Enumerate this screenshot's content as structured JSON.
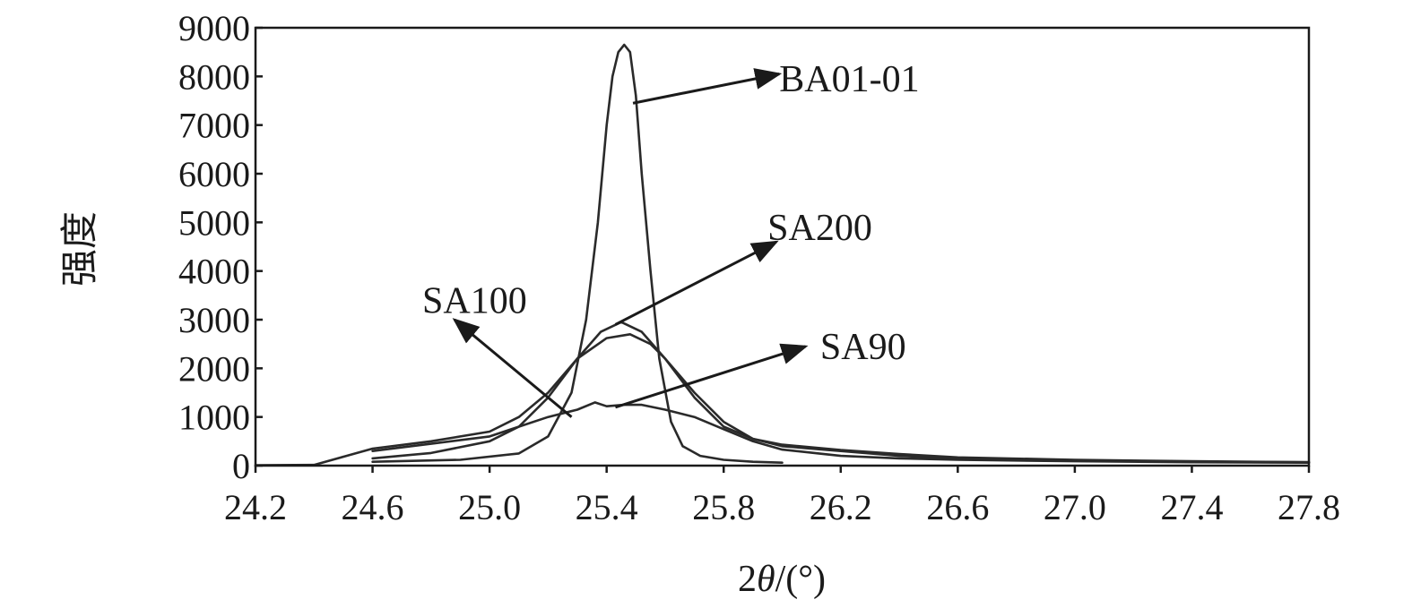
{
  "chart_data": {
    "type": "line",
    "xlabel_prefix": "2",
    "xlabel_theta": "θ",
    "xlabel_suffix": "/(°)",
    "ylabel": "强度",
    "xlim": [
      24.2,
      27.8
    ],
    "ylim": [
      0,
      9000
    ],
    "x_ticks": [
      "24.2",
      "24.6",
      "25.0",
      "25.4",
      "25.8",
      "26.2",
      "26.6",
      "27.0",
      "27.4",
      "27.8"
    ],
    "y_ticks": [
      "0",
      "1000",
      "2000",
      "3000",
      "4000",
      "5000",
      "6000",
      "7000",
      "8000",
      "9000"
    ],
    "grid": false,
    "legend": "none",
    "line_color": "#2a2a2a",
    "series": [
      {
        "name": "BA01-01",
        "x": [
          24.6,
          24.9,
          25.1,
          25.2,
          25.28,
          25.33,
          25.37,
          25.4,
          25.42,
          25.44,
          25.46,
          25.48,
          25.5,
          25.52,
          25.55,
          25.58,
          25.62,
          25.66,
          25.72,
          25.8,
          25.9,
          26.0
        ],
        "y": [
          80,
          120,
          250,
          600,
          1500,
          3000,
          5000,
          7000,
          8000,
          8500,
          8650,
          8500,
          7600,
          6000,
          4000,
          2200,
          900,
          400,
          200,
          120,
          80,
          60
        ]
      },
      {
        "name": "SA200",
        "x": [
          24.6,
          24.8,
          25.0,
          25.1,
          25.2,
          25.3,
          25.38,
          25.45,
          25.52,
          25.6,
          25.7,
          25.8,
          25.9,
          26.0,
          26.2,
          26.4,
          26.6,
          27.0,
          27.4,
          27.8
        ],
        "y": [
          150,
          260,
          500,
          800,
          1400,
          2200,
          2750,
          2950,
          2750,
          2200,
          1400,
          800,
          550,
          400,
          300,
          200,
          150,
          100,
          80,
          70
        ]
      },
      {
        "name": "SA100",
        "x": [
          24.2,
          24.4,
          24.6,
          24.8,
          25.0,
          25.1,
          25.2,
          25.3,
          25.4,
          25.48,
          25.55,
          25.6,
          25.7,
          25.8,
          25.9,
          26.0,
          26.2,
          26.4,
          26.6,
          27.0,
          27.4,
          27.8
        ],
        "y": [
          10,
          15,
          350,
          500,
          700,
          1000,
          1500,
          2200,
          2620,
          2700,
          2500,
          2200,
          1500,
          900,
          550,
          430,
          320,
          240,
          170,
          120,
          90,
          70
        ]
      },
      {
        "name": "SA90",
        "x": [
          24.6,
          24.8,
          25.0,
          25.1,
          25.2,
          25.3,
          25.36,
          25.4,
          25.46,
          25.52,
          25.6,
          25.7,
          25.8,
          25.9,
          26.0,
          26.2,
          26.4,
          26.6,
          27.0,
          27.4,
          27.8
        ],
        "y": [
          300,
          450,
          600,
          800,
          1000,
          1150,
          1300,
          1220,
          1250,
          1250,
          1150,
          1000,
          750,
          500,
          330,
          200,
          150,
          120,
          90,
          70,
          60
        ]
      }
    ],
    "annotations": [
      {
        "text": "BA01-01",
        "label_x": 25.99,
        "label_y": 7950,
        "arrow_from": [
          25.49,
          7450
        ],
        "arrow_to": [
          25.99,
          8050
        ]
      },
      {
        "text": "SA200",
        "label_x": 25.95,
        "label_y": 4900,
        "arrow_from": [
          25.43,
          2900
        ],
        "arrow_to": [
          25.98,
          4600
        ]
      },
      {
        "text": "SA100",
        "label_x": 24.77,
        "label_y": 3400,
        "arrow_from": [
          25.28,
          1000
        ],
        "arrow_to": [
          24.88,
          3000
        ]
      },
      {
        "text": "SA90",
        "label_x": 26.13,
        "label_y": 2450,
        "arrow_from": [
          25.43,
          1200
        ],
        "arrow_to": [
          26.08,
          2450
        ]
      }
    ]
  }
}
